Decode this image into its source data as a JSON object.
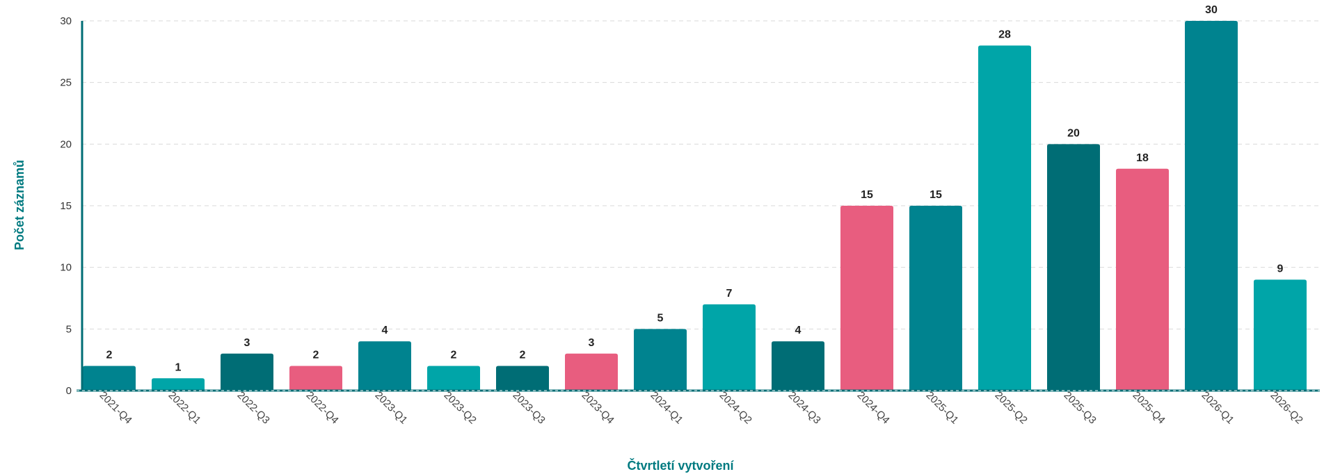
{
  "chart_data": {
    "type": "bar",
    "title": "",
    "xlabel": "Čtvrtletí vytvoření",
    "ylabel": "Počet záznamů",
    "ylim": [
      0,
      30
    ],
    "yticks": [
      0,
      5,
      10,
      15,
      20,
      25,
      30
    ],
    "grid": "horizontal dashed",
    "legend": "none",
    "categories": [
      "2021-Q4",
      "2022-Q1",
      "2022-Q3",
      "2022-Q4",
      "2023-Q1",
      "2023-Q2",
      "2023-Q3",
      "2023-Q4",
      "2024-Q1",
      "2024-Q2",
      "2024-Q3",
      "2024-Q4",
      "2025-Q1",
      "2025-Q2",
      "2025-Q3",
      "2025-Q4",
      "2026-Q1",
      "2026-Q2"
    ],
    "values": [
      2,
      1,
      3,
      2,
      4,
      2,
      2,
      3,
      5,
      7,
      4,
      15,
      15,
      28,
      20,
      18,
      30,
      9
    ],
    "bar_colors": [
      "#00838f",
      "#00a5a8",
      "#006d75",
      "#e85d7f",
      "#00838f",
      "#00a5a8",
      "#006d75",
      "#e85d7f",
      "#00838f",
      "#00a5a8",
      "#006d75",
      "#e85d7f",
      "#00838f",
      "#00a5a8",
      "#006d75",
      "#e85d7f",
      "#00838f",
      "#00a5a8"
    ],
    "axis_color": "#006d75",
    "axis_title_color": "#007a80"
  }
}
